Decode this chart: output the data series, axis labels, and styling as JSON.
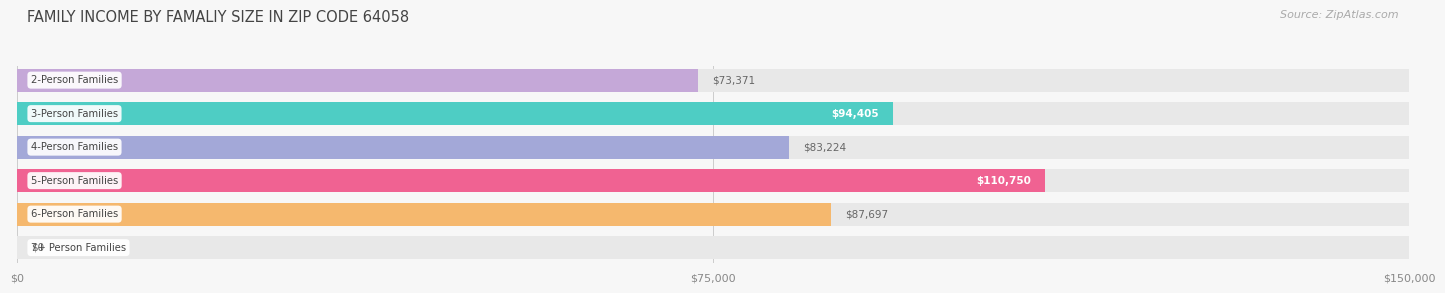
{
  "title": "FAMILY INCOME BY FAMALIY SIZE IN ZIP CODE 64058",
  "source": "Source: ZipAtlas.com",
  "categories": [
    "2-Person Families",
    "3-Person Families",
    "4-Person Families",
    "5-Person Families",
    "6-Person Families",
    "7+ Person Families"
  ],
  "values": [
    73371,
    94405,
    83224,
    110750,
    87697,
    0
  ],
  "bar_colors": [
    "#c5a8d8",
    "#4ecdc4",
    "#a3a8d8",
    "#f06292",
    "#f5b86e",
    "#f4a0b0"
  ],
  "xlim": [
    0,
    150000
  ],
  "xticks": [
    0,
    75000,
    150000
  ],
  "xtick_labels": [
    "$0",
    "$75,000",
    "$150,000"
  ],
  "title_fontsize": 10.5,
  "source_fontsize": 8,
  "fig_bg_color": "#f7f7f7",
  "bar_bg_color": "#e8e8e8",
  "bar_height": 0.68,
  "value_inside": [
    false,
    true,
    false,
    true,
    false,
    false
  ],
  "value_labels": [
    "$73,371",
    "$94,405",
    "$83,224",
    "$110,750",
    "$87,697",
    "$0"
  ]
}
